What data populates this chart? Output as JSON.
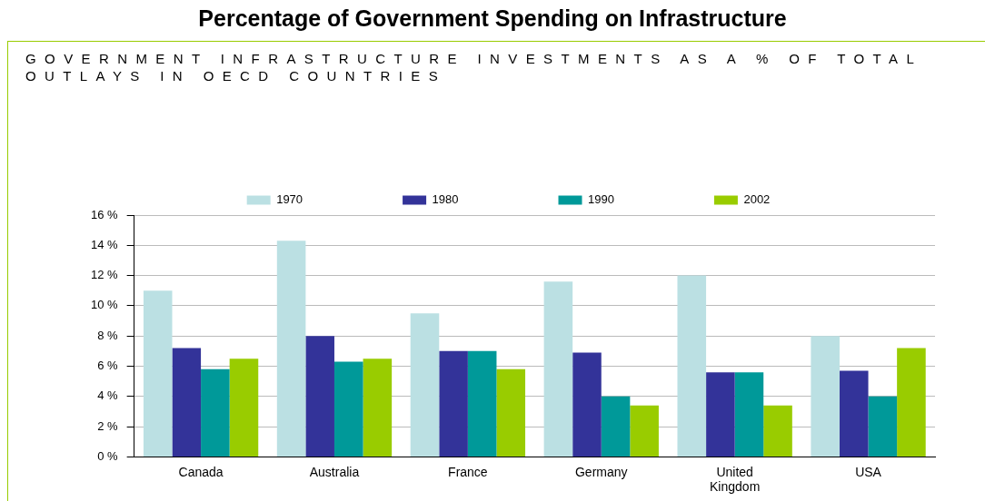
{
  "chart_data": {
    "type": "bar",
    "title": "Percentage of Government Spending on Infrastructure",
    "subtitle": "GOVERNMENT INFRASTRUCTURE INVESTMENTS AS A % OF TOTAL OUTLAYS IN OECD COUNTRIES",
    "categories": [
      "Canada",
      "Australia",
      "France",
      "Germany",
      "United Kingdom",
      "USA"
    ],
    "series": [
      {
        "name": "1970",
        "color": "#bbe0e3",
        "values": [
          11.0,
          14.3,
          9.5,
          11.6,
          12.0,
          8.0
        ]
      },
      {
        "name": "1980",
        "color": "#333399",
        "values": [
          7.2,
          8.0,
          7.0,
          6.9,
          5.6,
          5.7
        ]
      },
      {
        "name": "1990",
        "color": "#009999",
        "values": [
          5.8,
          6.3,
          7.0,
          4.0,
          5.6,
          4.0
        ]
      },
      {
        "name": "2002",
        "color": "#99cc00",
        "values": [
          6.5,
          6.5,
          5.8,
          3.4,
          3.4,
          7.2
        ]
      }
    ],
    "ylim": [
      0,
      16
    ],
    "yticks": [
      {
        "value": 0,
        "label": "0 %"
      },
      {
        "value": 2,
        "label": "2 %"
      },
      {
        "value": 4,
        "label": "4 %"
      },
      {
        "value": 6,
        "label": "6 %"
      },
      {
        "value": 8,
        "label": "8 %"
      },
      {
        "value": 10,
        "label": "10 %"
      },
      {
        "value": 12,
        "label": "12 %"
      },
      {
        "value": 14,
        "label": "14 %"
      },
      {
        "value": 16,
        "label": "16 %"
      }
    ],
    "grid": "y",
    "legend": "top"
  }
}
